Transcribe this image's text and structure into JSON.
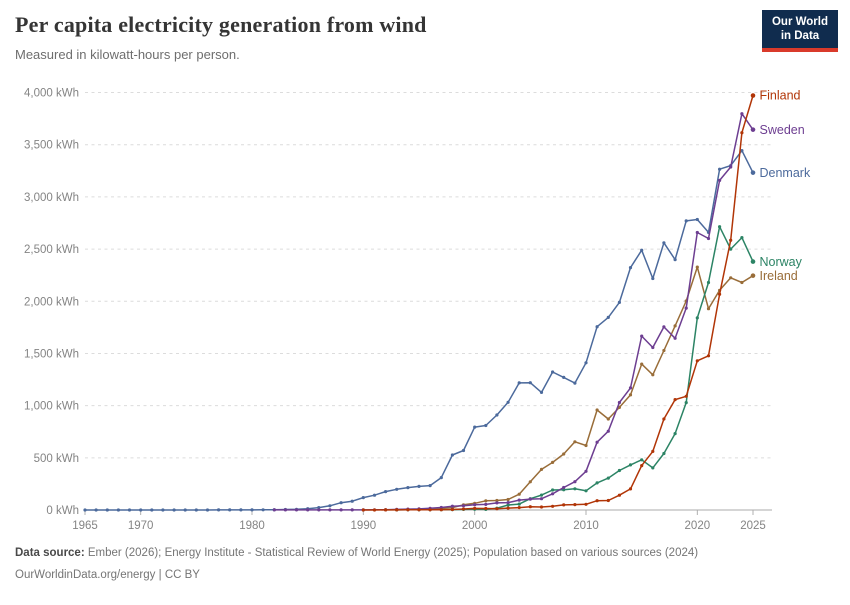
{
  "header": {
    "title": "Per capita electricity generation from wind",
    "subtitle": "Measured in kilowatt-hours per person."
  },
  "logo": {
    "line1": "Our World",
    "line2": "in Data",
    "bg_color": "#102C4E",
    "accent_color": "#D93A2B",
    "text_color": "#ffffff"
  },
  "footer": {
    "source_label": "Data source:",
    "source_text": " Ember (2026); Energy Institute - Statistical Review of World Energy (2025); Population based on various sources (2024)",
    "link_text": "OurWorldinData.org/energy",
    "separator": " | ",
    "license_text": "CC BY"
  },
  "chart_data": {
    "type": "line",
    "title": "Per capita electricity generation from wind",
    "unit": "kWh",
    "grid": true,
    "legend_position": "end-of-line-labels",
    "x_axis": {
      "min": 1965,
      "max": 2025,
      "ticks": [
        1965,
        1970,
        1980,
        1990,
        2000,
        2010,
        2020,
        2025
      ]
    },
    "y_axis": {
      "min": 0,
      "max": 4000,
      "step": 500,
      "tick_labels": [
        "0 kWh",
        "500 kWh",
        "1,000 kWh",
        "1,500 kWh",
        "2,000 kWh",
        "2,500 kWh",
        "3,000 kWh",
        "3,500 kWh",
        "4,000 kWh"
      ]
    },
    "axis_colors": {
      "grid": "#dcdcdc",
      "zero_line": "#ababab",
      "tick": "#b0b0b0",
      "label": "#848484"
    },
    "series": [
      {
        "name": "Denmark",
        "color": "#4C6A9C",
        "start_year": 1965,
        "values": [
          0,
          0,
          0,
          0,
          0,
          0,
          0,
          0,
          0,
          0,
          0,
          0,
          0.5,
          1,
          1,
          1,
          2,
          3,
          5,
          7,
          12,
          23,
          40,
          70,
          84,
          119,
          142,
          176,
          198,
          215,
          226,
          234,
          310,
          527,
          570,
          794,
          810,
          910,
          1032,
          1218,
          1220,
          1127,
          1322,
          1270,
          1216,
          1410,
          1756,
          1845,
          1989,
          2322,
          2489,
          2218,
          2560,
          2399,
          2770,
          2783,
          2660,
          3265,
          3300,
          3443,
          3232
        ]
      },
      {
        "name": "Ireland",
        "color": "#996D39",
        "start_year": 1992,
        "values": [
          1,
          2,
          5,
          4,
          4,
          14,
          23,
          50,
          64,
          88,
          91,
          101,
          151,
          270,
          389,
          456,
          537,
          653,
          618,
          958,
          872,
          983,
          1103,
          1398,
          1295,
          1528,
          1764,
          2002,
          2327,
          1929,
          2105,
          2225,
          2180,
          2245
        ]
      },
      {
        "name": "Norway",
        "color": "#2C8465",
        "start_year": 1993,
        "values": [
          1,
          2,
          3,
          2,
          3,
          4,
          6,
          7,
          6,
          17,
          48,
          57,
          108,
          143,
          192,
          194,
          203,
          184,
          260,
          306,
          378,
          432,
          481,
          403,
          541,
          732,
          1029,
          1840,
          2180,
          2714,
          2500,
          2610,
          2380
        ]
      },
      {
        "name": "Sweden",
        "color": "#6D3E91",
        "start_year": 1982,
        "values": [
          0.5,
          1,
          1,
          1,
          1,
          1,
          1,
          1,
          1,
          2,
          3,
          6,
          9,
          11,
          16,
          24,
          36,
          41,
          51,
          54,
          68,
          71,
          95,
          104,
          108,
          155,
          216,
          271,
          371,
          650,
          755,
          1030,
          1170,
          1666,
          1557,
          1754,
          1645,
          1934,
          2659,
          2601,
          3158,
          3286,
          3797,
          3644
        ]
      },
      {
        "name": "Finland",
        "color": "#B13507",
        "start_year": 1990,
        "values": [
          0.2,
          0.3,
          1,
          1,
          2,
          2,
          2,
          3,
          5,
          10,
          15,
          14,
          12,
          18,
          23,
          32,
          29,
          35,
          49,
          52,
          55,
          89,
          91,
          142,
          202,
          425,
          561,
          872,
          1058,
          1089,
          1429,
          1477,
          2068,
          2585,
          3615,
          3971
        ]
      }
    ]
  }
}
